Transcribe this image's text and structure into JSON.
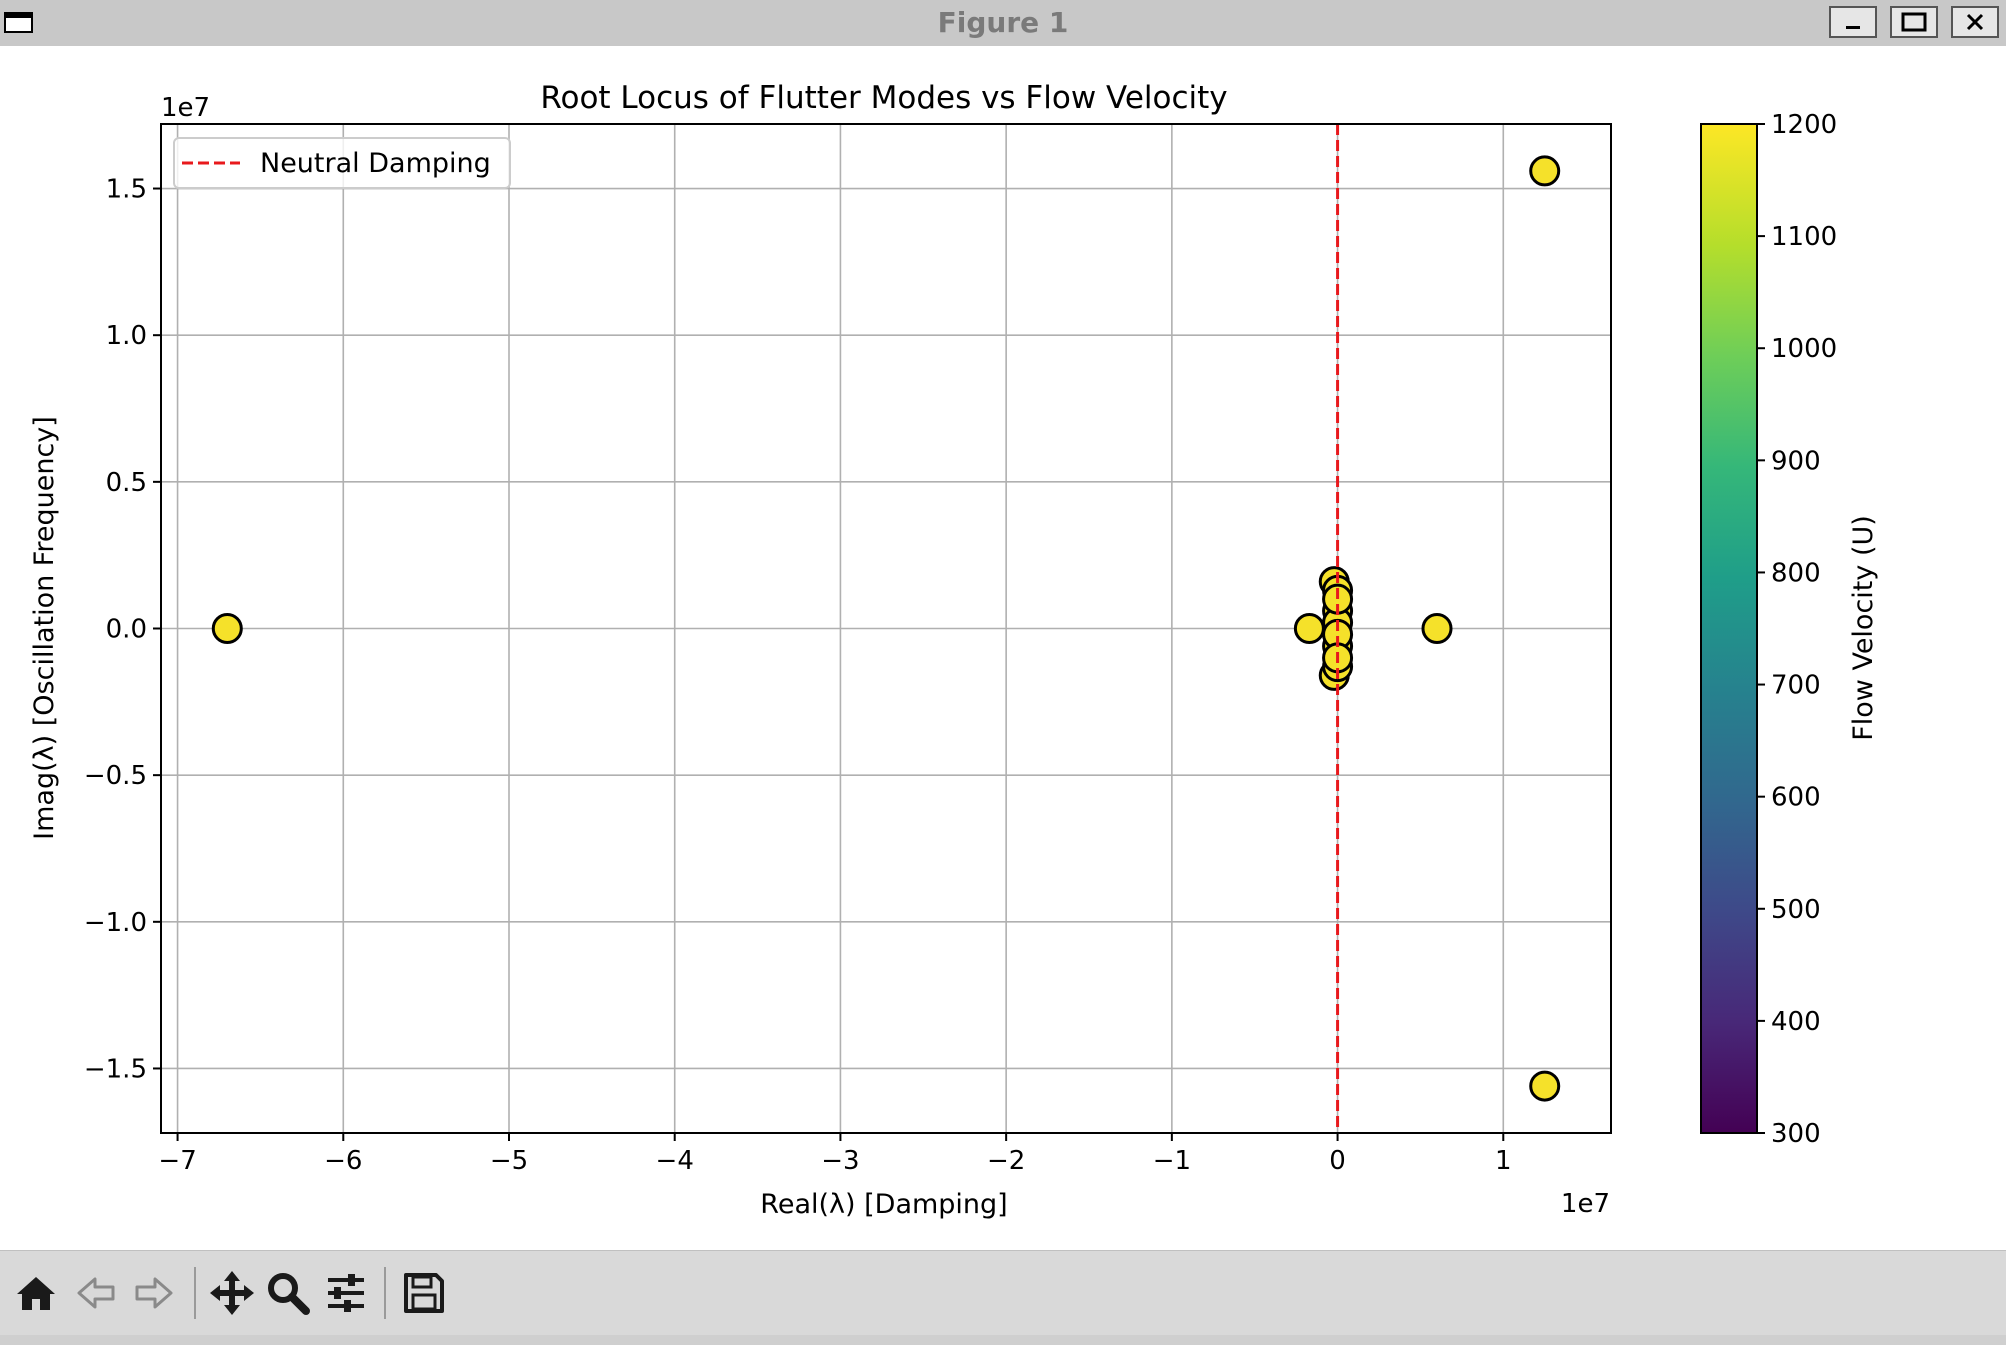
{
  "window": {
    "title": "Figure 1",
    "buttons": [
      "minimize",
      "maximize",
      "close"
    ]
  },
  "toolbar": {
    "tools": [
      {
        "name": "home-icon"
      },
      {
        "name": "back-arrow-icon"
      },
      {
        "name": "forward-arrow-icon"
      },
      {
        "name": "pan-move-icon"
      },
      {
        "name": "zoom-magnifier-icon"
      },
      {
        "name": "configure-subplots-icon"
      },
      {
        "name": "save-floppy-icon"
      }
    ]
  },
  "chart_data": {
    "type": "scatter",
    "title": "Root Locus of Flutter Modes vs Flow Velocity",
    "xlabel": "Real(λ) [Damping]",
    "ylabel": "Imag(λ) [Oscillation Frequency]",
    "x_offset_label": "1e7",
    "y_offset_label": "1e7",
    "xlim": [
      -7.1,
      1.65
    ],
    "ylim": [
      -1.72,
      1.72
    ],
    "xticks": [
      -7,
      -6,
      -5,
      -4,
      -3,
      -2,
      -1,
      0,
      1
    ],
    "xtick_labels": [
      "−7",
      "−6",
      "−5",
      "−4",
      "−3",
      "−2",
      "−1",
      "0",
      "1"
    ],
    "yticks": [
      1.5,
      1.0,
      0.5,
      0.0,
      -0.5,
      -1.0,
      -1.5
    ],
    "ytick_labels": [
      "1.5",
      "1.0",
      "0.5",
      "0.0",
      "−0.5",
      "−1.0",
      "−1.5"
    ],
    "grid": true,
    "legend": {
      "placement": "upper-left",
      "entries": [
        "Neutral Damping"
      ]
    },
    "neutral_line": {
      "x": 0,
      "color": "#e8191c",
      "style": "dashed"
    },
    "marker_color": "#f5e12a",
    "marker_edge": "#000000",
    "points": [
      {
        "x": -6.7,
        "y": 0.0
      },
      {
        "x": -0.17,
        "y": 0.0
      },
      {
        "x": 0.6,
        "y": 0.0
      },
      {
        "x": 1.25,
        "y": 1.56
      },
      {
        "x": 1.25,
        "y": -1.56
      },
      {
        "x": -0.02,
        "y": 0.16
      },
      {
        "x": -0.02,
        "y": -0.16
      },
      {
        "x": 0.0,
        "y": 0.13
      },
      {
        "x": 0.0,
        "y": -0.13
      },
      {
        "x": 0.0,
        "y": 0.06
      },
      {
        "x": 0.0,
        "y": -0.06
      },
      {
        "x": 0.0,
        "y": 0.02
      },
      {
        "x": 0.0,
        "y": -0.02
      },
      {
        "x": 0.0,
        "y": 0.1
      },
      {
        "x": 0.0,
        "y": -0.1
      }
    ],
    "colorbar": {
      "label": "Flow Velocity (U)",
      "min": 300,
      "max": 1200,
      "ticks": [
        1200,
        1100,
        1000,
        900,
        800,
        700,
        600,
        500,
        400,
        300
      ],
      "colormap": "viridis"
    }
  }
}
